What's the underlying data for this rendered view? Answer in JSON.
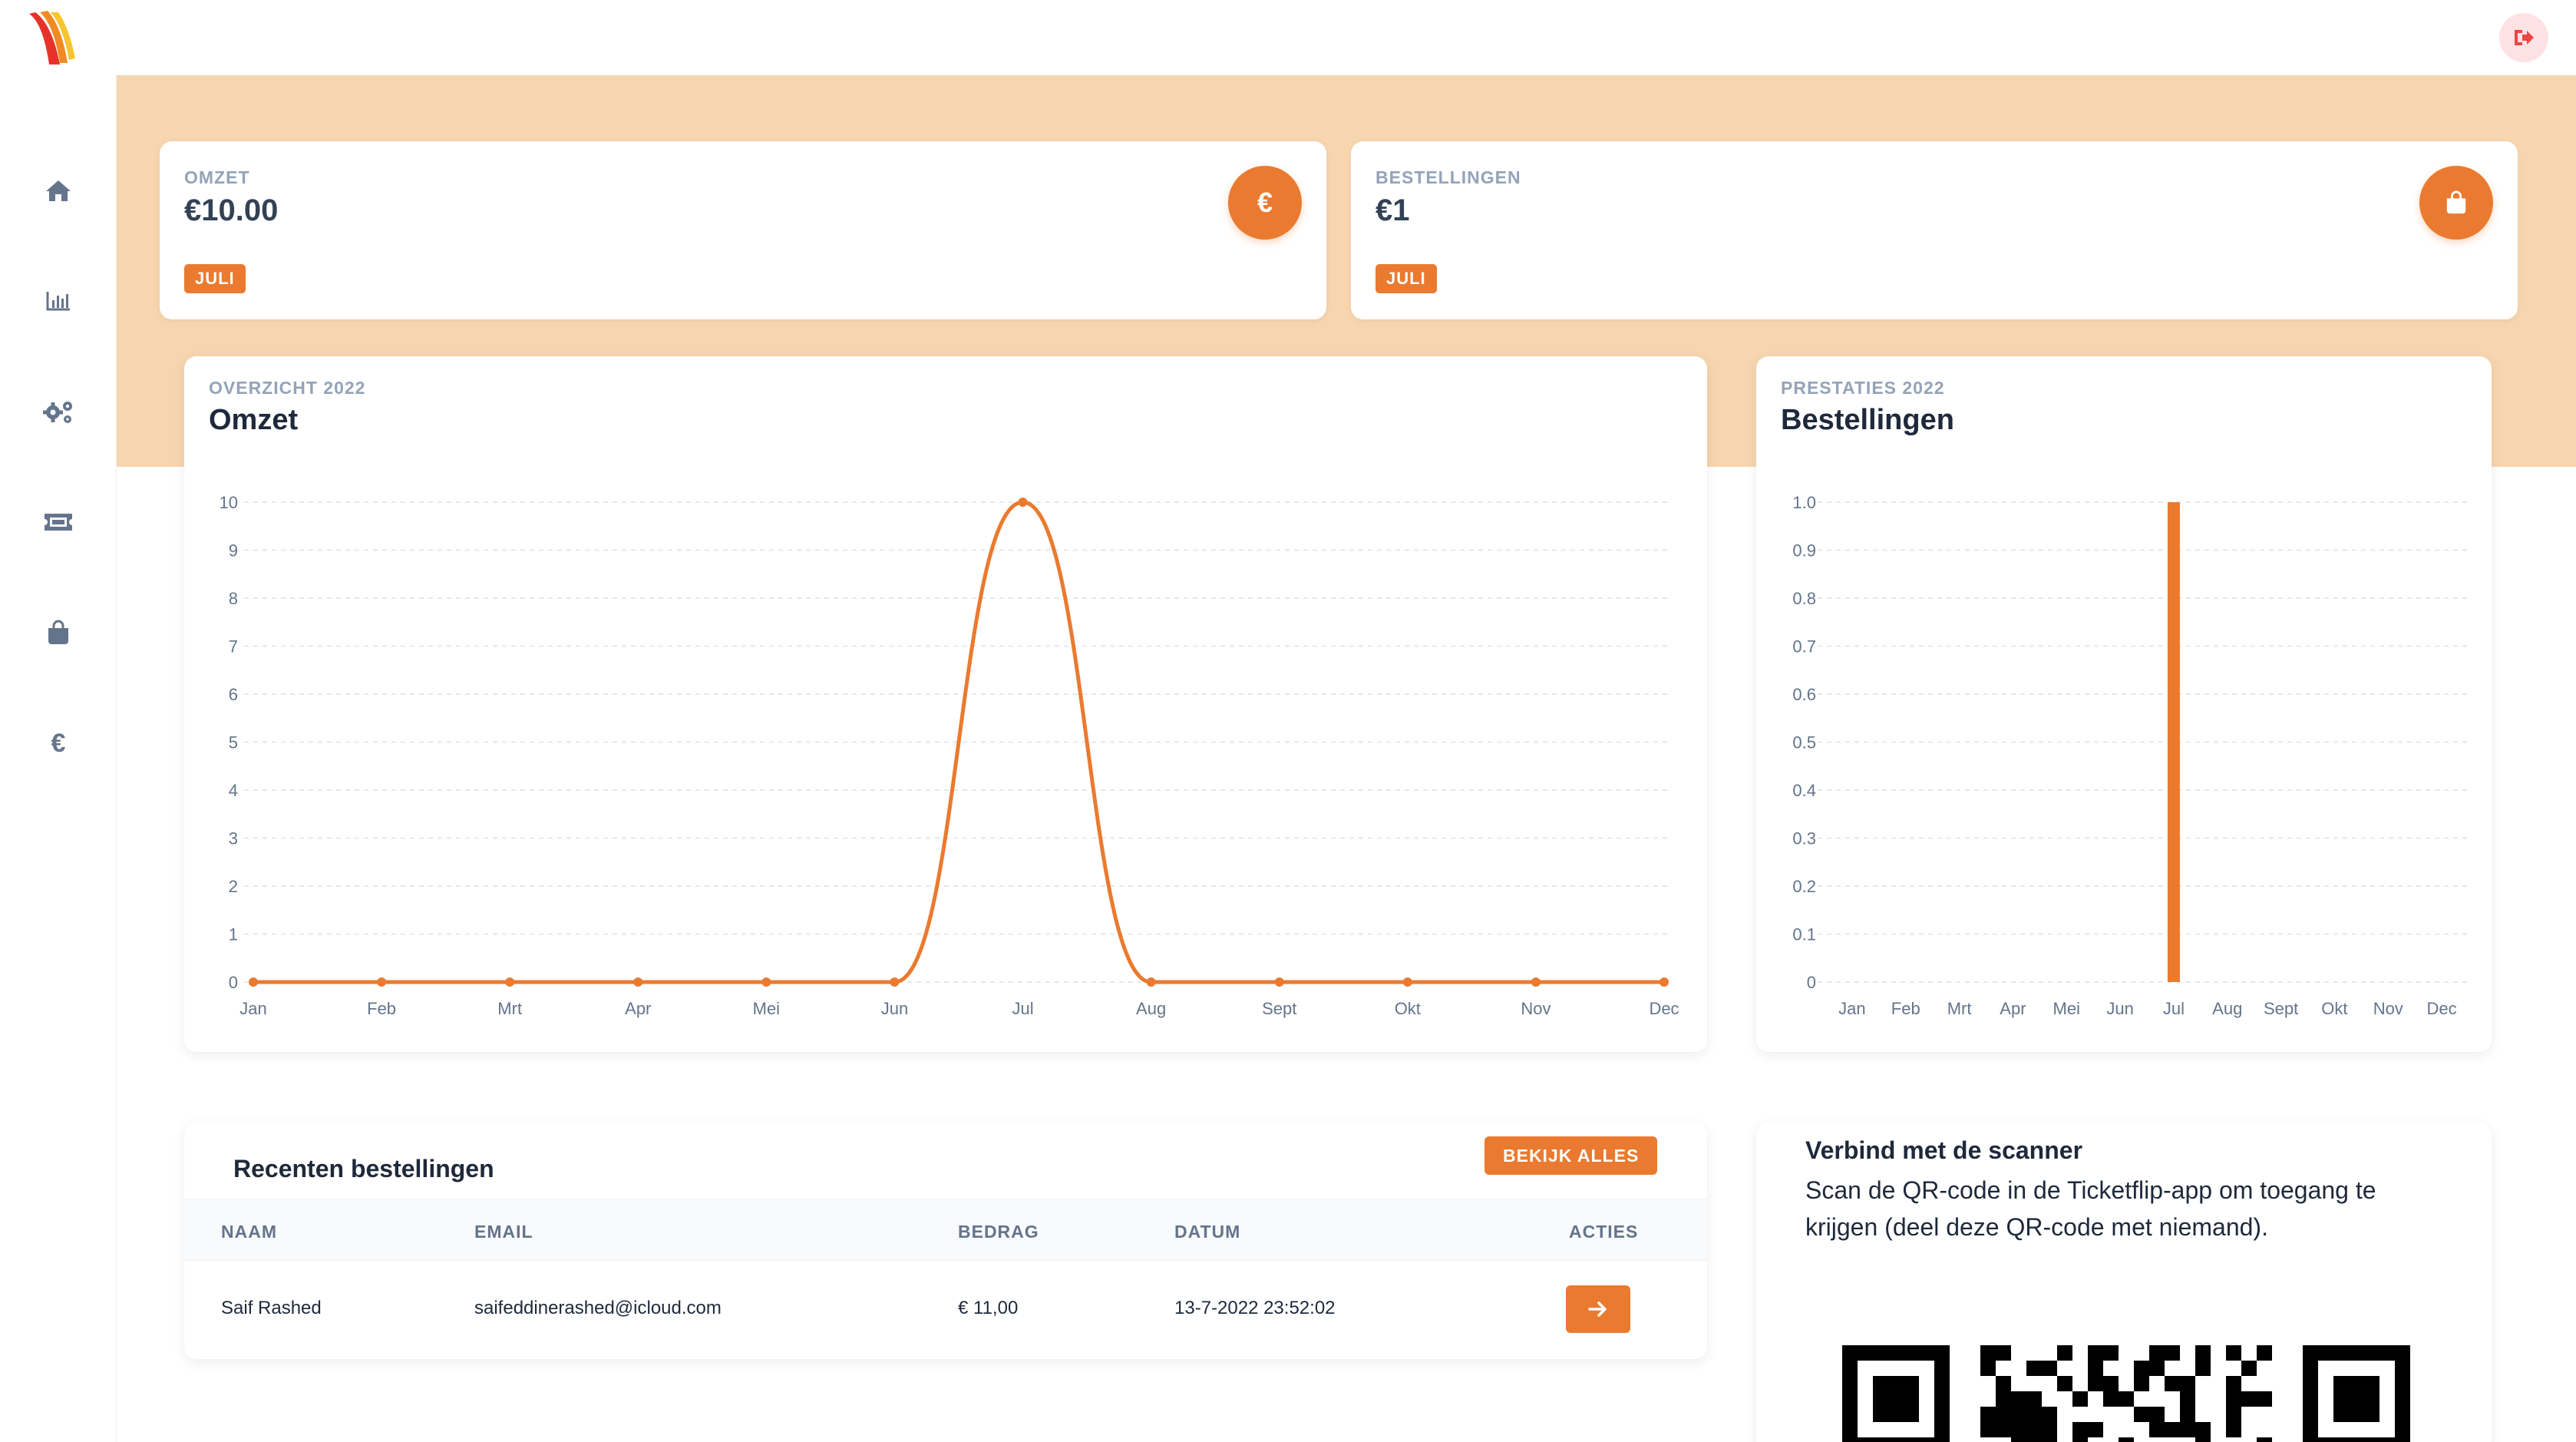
{
  "colors": {
    "accent": "#ea7a2f",
    "hero": "#f7d5ae",
    "grid": "#e2e8f0",
    "axis_text": "#64748b"
  },
  "header": {
    "logo_icon": "ticketflip-logo-icon",
    "logout_icon": "logout-icon"
  },
  "sidebar": {
    "items": [
      {
        "icon": "home-icon"
      },
      {
        "icon": "bar-chart-icon"
      },
      {
        "icon": "gears-icon"
      },
      {
        "icon": "ticket-icon"
      },
      {
        "icon": "shopping-bag-icon"
      },
      {
        "icon": "euro-icon",
        "glyph": "€"
      }
    ]
  },
  "stats": [
    {
      "label": "OMZET",
      "value": "€10.00",
      "badge": "JULI",
      "icon": "euro-icon",
      "glyph": "€"
    },
    {
      "label": "BESTELLINGEN",
      "value": "€1",
      "badge": "JULI",
      "icon": "shopping-bag-icon"
    }
  ],
  "charts": {
    "omzet": {
      "kicker": "OVERZICHT 2022",
      "title": "Omzet"
    },
    "bestellingen": {
      "kicker": "PRESTATIES 2022",
      "title": "Bestellingen"
    }
  },
  "chart_data": [
    {
      "type": "line",
      "title": "Omzet",
      "categories": [
        "Jan",
        "Feb",
        "Mrt",
        "Apr",
        "Mei",
        "Jun",
        "Jul",
        "Aug",
        "Sept",
        "Okt",
        "Nov",
        "Dec"
      ],
      "values": [
        0,
        0,
        0,
        0,
        0,
        0,
        10,
        0,
        0,
        0,
        0,
        0
      ],
      "ylim": [
        0,
        10
      ],
      "yticks": [
        "0",
        "1",
        "2",
        "3",
        "4",
        "5",
        "6",
        "7",
        "8",
        "9",
        "10"
      ],
      "grid": true
    },
    {
      "type": "bar",
      "title": "Bestellingen",
      "categories": [
        "Jan",
        "Feb",
        "Mrt",
        "Apr",
        "Mei",
        "Jun",
        "Jul",
        "Aug",
        "Sept",
        "Okt",
        "Nov",
        "Dec"
      ],
      "values": [
        0,
        0,
        0,
        0,
        0,
        0,
        1,
        0,
        0,
        0,
        0,
        0
      ],
      "ylim": [
        0,
        1
      ],
      "yticks": [
        "0",
        "0.1",
        "0.2",
        "0.3",
        "0.4",
        "0.5",
        "0.6",
        "0.7",
        "0.8",
        "0.9",
        "1.0"
      ],
      "grid": true
    }
  ],
  "orders": {
    "title": "Recenten bestellingen",
    "view_all": "BEKIJK ALLES",
    "columns": [
      "NAAM",
      "EMAIL",
      "BEDRAG",
      "DATUM",
      "ACTIES"
    ],
    "rows": [
      {
        "name": "Saif Rashed",
        "email": "saifeddinerashed@icloud.com",
        "amount": "€ 11,00",
        "date": "13-7-2022 23:52:02",
        "action_icon": "arrow-right-icon"
      }
    ]
  },
  "scanner": {
    "title": "Verbind met de scanner",
    "text": "Scan de QR-code in de Ticketflip-app om toegang te krijgen (deel deze QR-code met niemand).",
    "qr_icon": "qr-code-icon"
  }
}
